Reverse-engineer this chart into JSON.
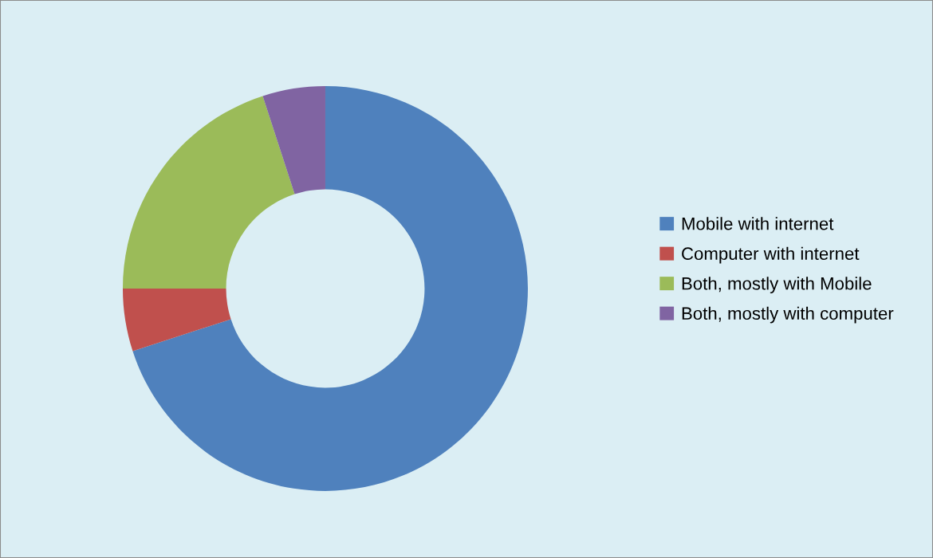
{
  "chart_data": {
    "type": "donut",
    "categories": [
      "Mobile with internet",
      "Computer with internet",
      "Both, mostly with Mobile",
      "Both, mostly with computer"
    ],
    "values": [
      70,
      5,
      20,
      5
    ],
    "colors": [
      "#4f81bd",
      "#c0504d",
      "#9bbb59",
      "#8064a2"
    ],
    "legend": "right"
  }
}
